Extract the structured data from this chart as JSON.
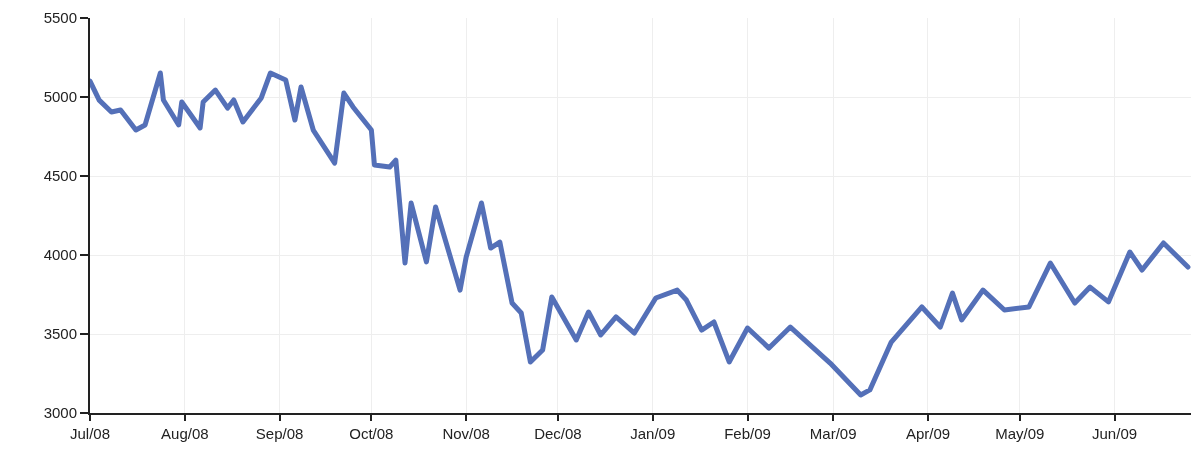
{
  "chart_data": {
    "type": "line",
    "x": [
      "2008-07-01",
      "2008-07-04",
      "2008-07-08",
      "2008-07-11",
      "2008-07-16",
      "2008-07-19",
      "2008-07-24",
      "2008-07-25",
      "2008-07-30",
      "2008-07-31",
      "2008-08-06",
      "2008-08-07",
      "2008-08-11",
      "2008-08-15",
      "2008-08-17",
      "2008-08-20",
      "2008-08-26",
      "2008-08-29",
      "2008-09-03",
      "2008-09-06",
      "2008-09-08",
      "2008-09-12",
      "2008-09-19",
      "2008-09-22",
      "2008-09-25",
      "2008-10-01",
      "2008-10-02",
      "2008-10-07",
      "2008-10-09",
      "2008-10-12",
      "2008-10-14",
      "2008-10-19",
      "2008-10-22",
      "2008-10-30",
      "2008-11-01",
      "2008-11-06",
      "2008-11-09",
      "2008-11-12",
      "2008-11-16",
      "2008-11-19",
      "2008-11-22",
      "2008-11-26",
      "2008-11-29",
      "2008-12-07",
      "2008-12-11",
      "2008-12-15",
      "2008-12-20",
      "2008-12-26",
      "2009-01-02",
      "2009-01-09",
      "2009-01-12",
      "2009-01-17",
      "2009-01-21",
      "2009-01-26",
      "2009-02-01",
      "2009-02-08",
      "2009-02-15",
      "2009-02-28",
      "2009-03-10",
      "2009-03-13",
      "2009-03-20",
      "2009-03-30",
      "2009-04-05",
      "2009-04-09",
      "2009-04-12",
      "2009-04-19",
      "2009-04-26",
      "2009-05-04",
      "2009-05-11",
      "2009-05-19",
      "2009-05-24",
      "2009-05-30",
      "2009-06-06",
      "2009-06-10",
      "2009-06-17",
      "2009-06-25"
    ],
    "series": [
      {
        "color": "#5470b8",
        "values": [
          5100,
          4980,
          4905,
          4918,
          4791,
          4823,
          5152,
          4981,
          4823,
          4968,
          4804,
          4968,
          5044,
          4930,
          4981,
          4842,
          4994,
          5152,
          5108,
          4854,
          5063,
          4791,
          4582,
          5025,
          4937,
          4791,
          4570,
          4557,
          4601,
          3949,
          4329,
          3956,
          4304,
          3778,
          3987,
          4329,
          4044,
          4082,
          3696,
          3633,
          3323,
          3399,
          3734,
          3462,
          3639,
          3494,
          3608,
          3506,
          3728,
          3778,
          3715,
          3525,
          3576,
          3323,
          3538,
          3411,
          3544,
          3316,
          3114,
          3146,
          3449,
          3671,
          3544,
          3759,
          3589,
          3778,
          3652,
          3671,
          3949,
          3696,
          3797,
          3703,
          4019,
          3905,
          4076,
          3924
        ]
      }
    ],
    "xlim": [
      "2008-07-01",
      "2009-06-26"
    ],
    "xticks": [
      {
        "value": "2008-07-01",
        "label": "Jul/08"
      },
      {
        "value": "2008-08-01",
        "label": "Aug/08"
      },
      {
        "value": "2008-09-01",
        "label": "Sep/08"
      },
      {
        "value": "2008-10-01",
        "label": "Oct/08"
      },
      {
        "value": "2008-11-01",
        "label": "Nov/08"
      },
      {
        "value": "2008-12-01",
        "label": "Dec/08"
      },
      {
        "value": "2009-01-01",
        "label": "Jan/09"
      },
      {
        "value": "2009-02-01",
        "label": "Feb/09"
      },
      {
        "value": "2009-03-01",
        "label": "Mar/09"
      },
      {
        "value": "2009-04-01",
        "label": "Apr/09"
      },
      {
        "value": "2009-05-01",
        "label": "May/09"
      },
      {
        "value": "2009-06-01",
        "label": "Jun/09"
      }
    ],
    "ylim": [
      3000,
      5500
    ],
    "yticks": [
      3000,
      3500,
      4000,
      4500,
      5000,
      5500
    ],
    "grid": true,
    "marker": "none",
    "line_style": "solid"
  }
}
